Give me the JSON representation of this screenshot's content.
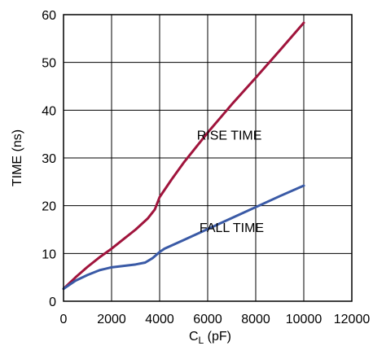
{
  "chart_data": {
    "type": "line",
    "title": "",
    "xlabel_main": "C",
    "xlabel_sub": "L",
    "xlabel_unit": " (pF)",
    "ylabel": "TIME (ns)",
    "xlim": [
      0,
      12000
    ],
    "ylim": [
      0,
      60
    ],
    "x_ticks": [
      0,
      2000,
      4000,
      6000,
      8000,
      10000,
      12000
    ],
    "y_ticks": [
      0,
      10,
      20,
      30,
      40,
      50,
      60
    ],
    "grid": true,
    "legend": "none",
    "series": [
      {
        "color": "#a0143c",
        "points": [
          [
            0,
            2.6
          ],
          [
            500,
            5.0
          ],
          [
            1000,
            7.2
          ],
          [
            1500,
            9.2
          ],
          [
            2000,
            11.0
          ],
          [
            2500,
            13.0
          ],
          [
            3000,
            15.0
          ],
          [
            3500,
            17.3
          ],
          [
            3800,
            19.2
          ],
          [
            4000,
            21.8
          ],
          [
            4500,
            25.5
          ],
          [
            5000,
            29.0
          ],
          [
            6000,
            35.3
          ],
          [
            7000,
            41.2
          ],
          [
            8000,
            46.8
          ],
          [
            9000,
            52.5
          ],
          [
            10000,
            58.3
          ]
        ]
      },
      {
        "color": "#3a5aa6",
        "points": [
          [
            0,
            2.6
          ],
          [
            500,
            4.3
          ],
          [
            1000,
            5.5
          ],
          [
            1500,
            6.5
          ],
          [
            2000,
            7.1
          ],
          [
            2500,
            7.4
          ],
          [
            3000,
            7.7
          ],
          [
            3400,
            8.1
          ],
          [
            3700,
            9.0
          ],
          [
            4000,
            10.3
          ],
          [
            4200,
            11.0
          ],
          [
            5000,
            12.8
          ],
          [
            6000,
            15.1
          ],
          [
            7000,
            17.4
          ],
          [
            8000,
            19.7
          ],
          [
            9000,
            22.0
          ],
          [
            10000,
            24.2
          ]
        ]
      }
    ],
    "annotations": [
      {
        "text": "RISE TIME",
        "x": 6900,
        "y": 33.8
      },
      {
        "text": "FALL TIME",
        "x": 7000,
        "y": 14.5
      }
    ]
  }
}
